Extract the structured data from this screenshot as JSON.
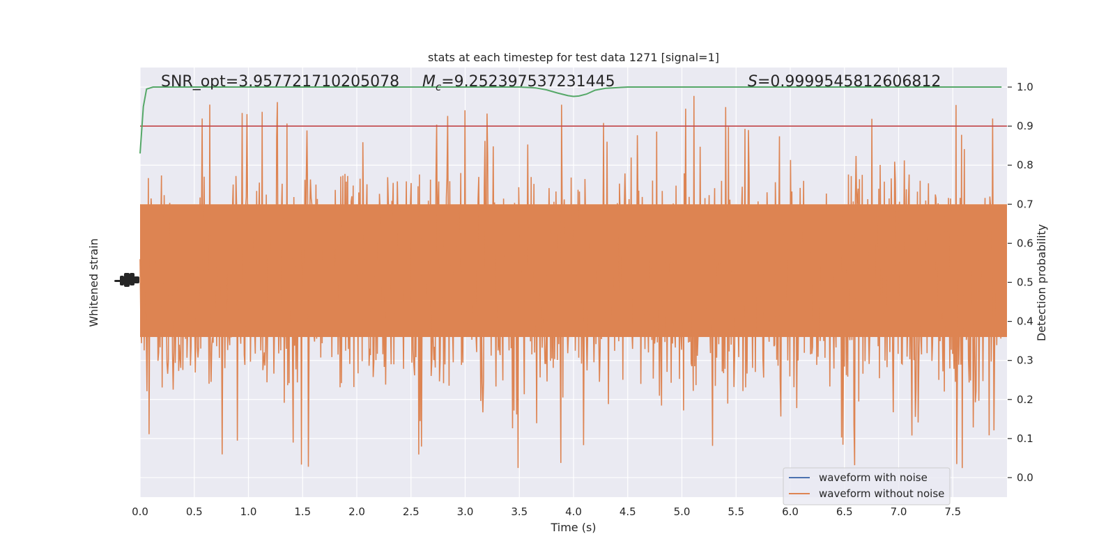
{
  "chart_data": {
    "type": "line",
    "title": "stats at each timestep for test data 1271 [signal=1]",
    "xlabel": "Time (s)",
    "ylabel_left": "Whitened strain",
    "ylabel_right": "Detection probability",
    "xlim": [
      0.0,
      8.0
    ],
    "ylim_right": [
      -0.05,
      1.05
    ],
    "x_ticks": [
      "0.0",
      "0.5",
      "1.0",
      "1.5",
      "2.0",
      "2.5",
      "3.0",
      "3.5",
      "4.0",
      "4.5",
      "5.0",
      "5.5",
      "6.0",
      "6.5",
      "7.0",
      "7.5"
    ],
    "x_tick_values": [
      0.0,
      0.5,
      1.0,
      1.5,
      2.0,
      2.5,
      3.0,
      3.5,
      4.0,
      4.5,
      5.0,
      5.5,
      6.0,
      6.5,
      7.0,
      7.5
    ],
    "right_ticks": [
      "0.0",
      "0.1",
      "0.2",
      "0.3",
      "0.4",
      "0.5",
      "0.6",
      "0.7",
      "0.8",
      "0.9",
      "1.0"
    ],
    "right_tick_values": [
      0.0,
      0.1,
      0.2,
      0.3,
      0.4,
      0.5,
      0.6,
      0.7,
      0.8,
      0.9,
      1.0
    ],
    "grid": true,
    "legend_position": "bottom-right",
    "annotations": {
      "snr": "SNR_opt=3.957721710205078",
      "mc_symbol": "M",
      "mc_subscript": "c",
      "mc_value": "=9.252397537231445",
      "s_symbol": "S",
      "s_value": "=0.9999545812606812"
    },
    "threshold": 0.9,
    "series": [
      {
        "name": "waveform with noise",
        "color": "#4c72b0"
      },
      {
        "name": "waveform without noise",
        "color": "#dd8452"
      }
    ],
    "probability_series": {
      "color": "#55a868",
      "x": [
        0.0,
        0.03,
        0.06,
        0.12,
        0.3,
        1.0,
        2.0,
        3.0,
        3.5,
        3.65,
        3.75,
        3.85,
        3.95,
        4.0,
        4.05,
        4.12,
        4.2,
        4.3,
        4.5,
        5.0,
        6.0,
        7.0,
        7.95
      ],
      "y": [
        0.83,
        0.95,
        0.995,
        1.0,
        1.0,
        1.0,
        1.0,
        1.0,
        1.0,
        0.998,
        0.993,
        0.985,
        0.978,
        0.976,
        0.977,
        0.982,
        0.992,
        0.997,
        1.0,
        1.0,
        1.0,
        1.0,
        1.0
      ]
    },
    "threshold_color": "#c44e52",
    "background": "#eaeaf2",
    "noise_band": {
      "core_low": 0.36,
      "core_high": 0.7,
      "min": 0.0,
      "max": 1.0
    }
  }
}
